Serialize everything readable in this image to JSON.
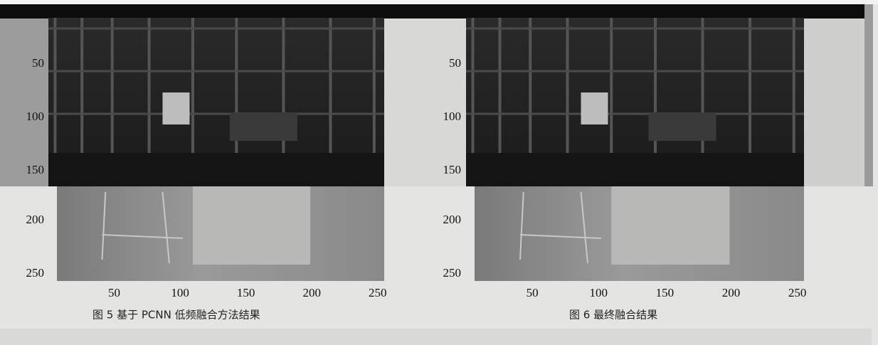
{
  "figures": [
    {
      "yticks": [
        50,
        100,
        150,
        200,
        250
      ],
      "xticks": [
        50,
        100,
        150,
        200,
        250
      ],
      "caption": "图 5  基于 PCNN 低频融合方法结果"
    },
    {
      "yticks": [
        50,
        100,
        150,
        200,
        250
      ],
      "xticks": [
        50,
        100,
        150,
        200,
        250
      ],
      "caption": "图 6   最终融合结果"
    }
  ]
}
